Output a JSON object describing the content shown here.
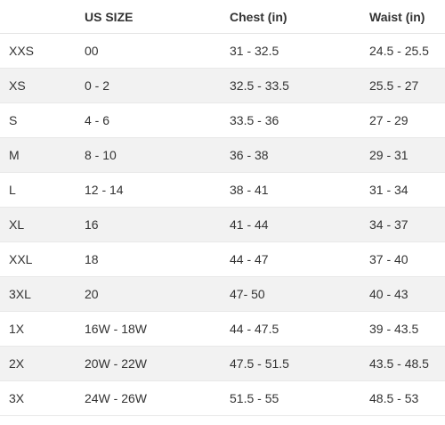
{
  "table": {
    "headers": [
      "US SIZE",
      "Chest (in)",
      "Waist (in)"
    ],
    "rows": [
      [
        "XXS",
        "00",
        "31 - 32.5",
        "24.5 - 25.5"
      ],
      [
        "XS",
        "0 - 2",
        "32.5 - 33.5",
        "25.5 - 27"
      ],
      [
        "S",
        "4 - 6",
        "33.5 - 36",
        "27 - 29"
      ],
      [
        "M",
        "8 - 10",
        "36 - 38",
        "29 - 31"
      ],
      [
        "L",
        "12 - 14",
        "38 - 41",
        "31 - 34"
      ],
      [
        "XL",
        "16",
        "41 - 44",
        "34 - 37"
      ],
      [
        "XXL",
        "18",
        "44 - 47",
        "37 - 40"
      ],
      [
        "3XL",
        "20",
        "47- 50",
        "40 - 43"
      ],
      [
        "1X",
        "16W - 18W",
        "44 - 47.5",
        "39 - 43.5"
      ],
      [
        "2X",
        "20W - 22W",
        "47.5 - 51.5",
        "43.5 - 48.5"
      ],
      [
        "3X",
        "24W - 26W",
        "51.5 - 55",
        "48.5 - 53"
      ]
    ]
  }
}
